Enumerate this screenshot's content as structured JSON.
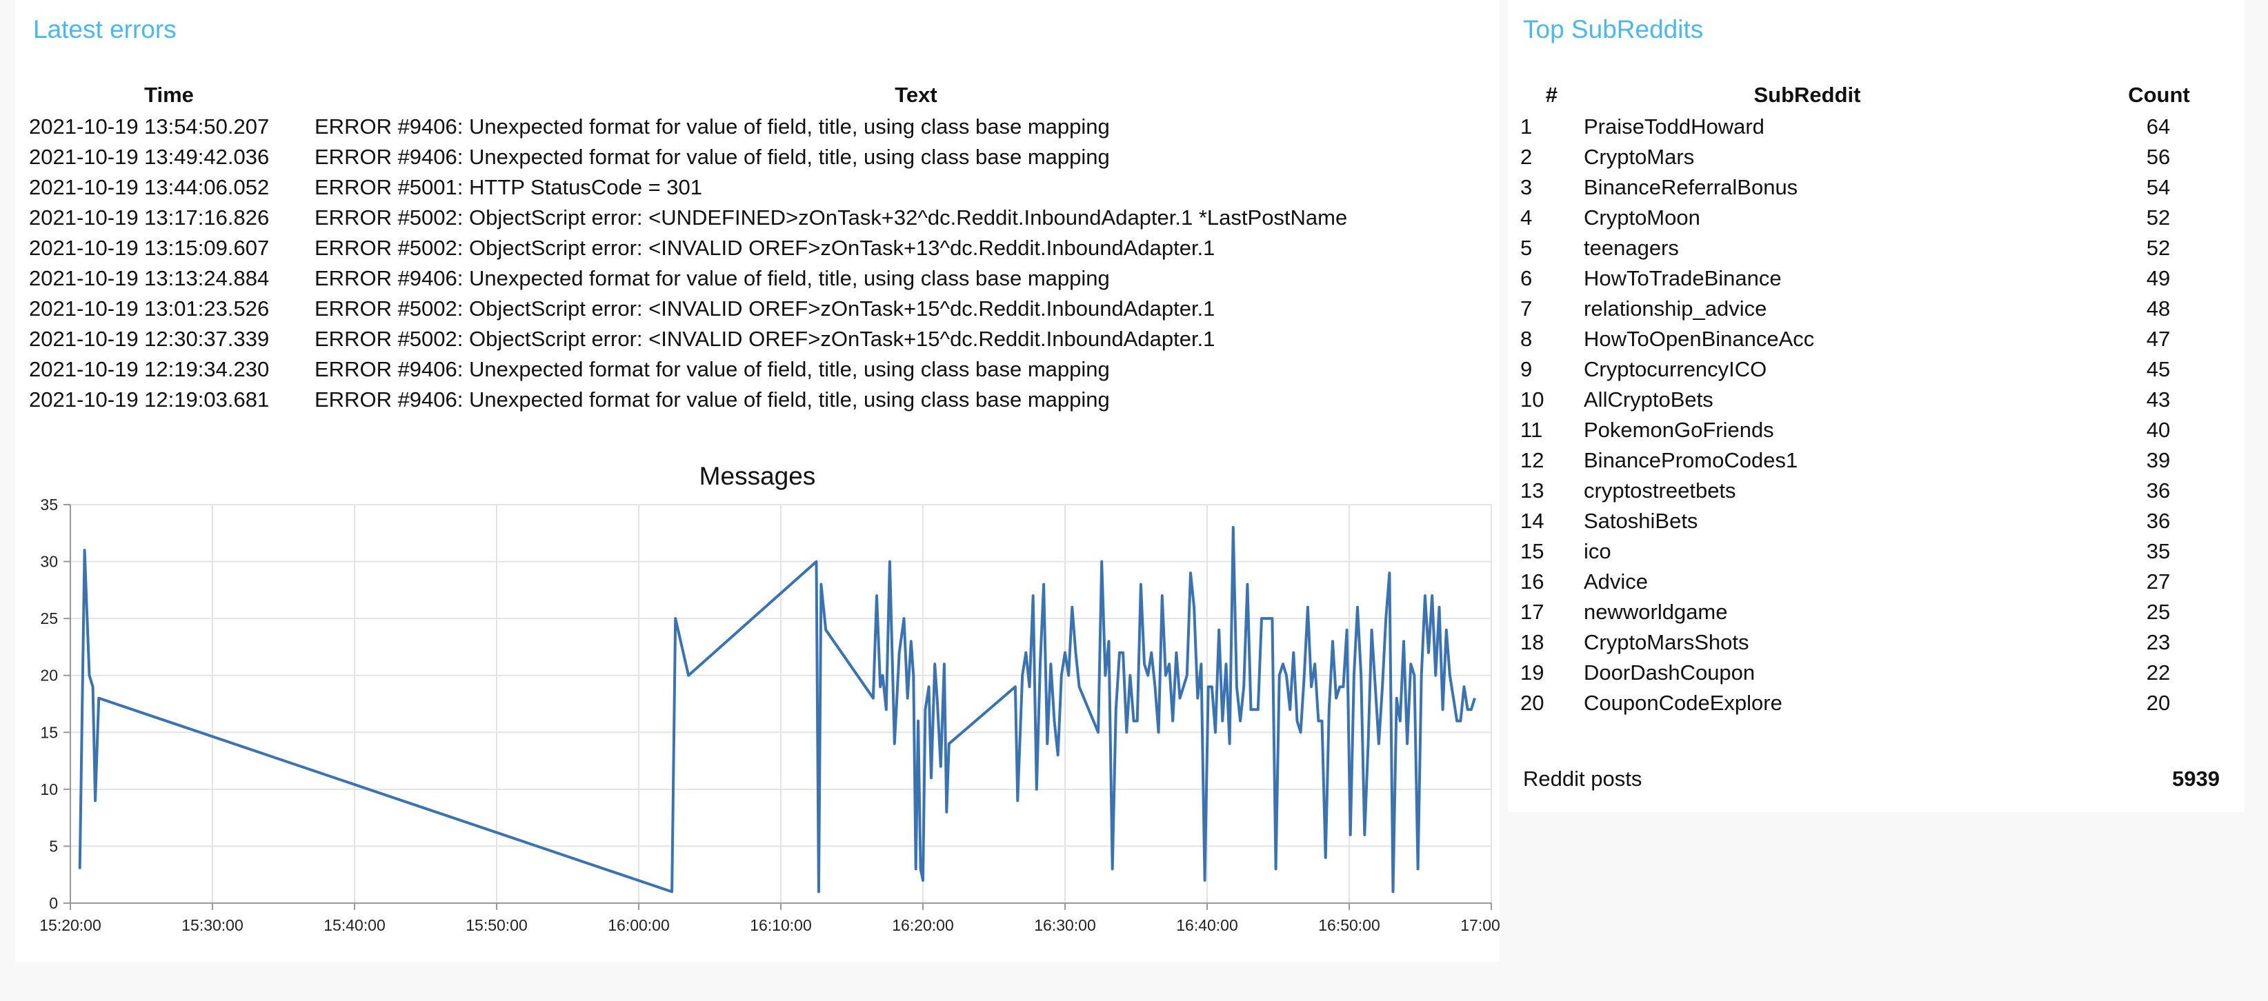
{
  "errors": {
    "title": "Latest errors",
    "columns": [
      "Time",
      "Text"
    ],
    "rows": [
      {
        "time": "2021-10-19 13:54:50.207",
        "text": "ERROR #9406: Unexpected format for value of field, title, using class base mapping"
      },
      {
        "time": "2021-10-19 13:49:42.036",
        "text": "ERROR #9406: Unexpected format for value of field, title, using class base mapping"
      },
      {
        "time": "2021-10-19 13:44:06.052",
        "text": "ERROR #5001: HTTP StatusCode = 301"
      },
      {
        "time": "2021-10-19 13:17:16.826",
        "text": "ERROR #5002: ObjectScript error: <UNDEFINED>zOnTask+32^dc.Reddit.InboundAdapter.1 *LastPostName"
      },
      {
        "time": "2021-10-19 13:15:09.607",
        "text": "ERROR #5002: ObjectScript error: <INVALID OREF>zOnTask+13^dc.Reddit.InboundAdapter.1"
      },
      {
        "time": "2021-10-19 13:13:24.884",
        "text": "ERROR #9406: Unexpected format for value of field, title, using class base mapping"
      },
      {
        "time": "2021-10-19 13:01:23.526",
        "text": "ERROR #5002: ObjectScript error: <INVALID OREF>zOnTask+15^dc.Reddit.InboundAdapter.1"
      },
      {
        "time": "2021-10-19 12:30:37.339",
        "text": "ERROR #5002: ObjectScript error: <INVALID OREF>zOnTask+15^dc.Reddit.InboundAdapter.1"
      },
      {
        "time": "2021-10-19 12:19:34.230",
        "text": "ERROR #9406: Unexpected format for value of field, title, using class base mapping"
      },
      {
        "time": "2021-10-19 12:19:03.681",
        "text": "ERROR #9406: Unexpected format for value of field, title, using class base mapping"
      }
    ]
  },
  "subreddits": {
    "title": "Top SubReddits",
    "columns": [
      "#",
      "SubReddit",
      "Count"
    ],
    "rows": [
      {
        "rank": "1",
        "name": "PraiseToddHoward",
        "count": "64"
      },
      {
        "rank": "2",
        "name": "CryptoMars",
        "count": "56"
      },
      {
        "rank": "3",
        "name": "BinanceReferralBonus",
        "count": "54"
      },
      {
        "rank": "4",
        "name": "CryptoMoon",
        "count": "52"
      },
      {
        "rank": "5",
        "name": "teenagers",
        "count": "52"
      },
      {
        "rank": "6",
        "name": "HowToTradeBinance",
        "count": "49"
      },
      {
        "rank": "7",
        "name": "relationship_advice",
        "count": "48"
      },
      {
        "rank": "8",
        "name": "HowToOpenBinanceAcc",
        "count": "47"
      },
      {
        "rank": "9",
        "name": "CryptocurrencyICO",
        "count": "45"
      },
      {
        "rank": "10",
        "name": "AllCryptoBets",
        "count": "43"
      },
      {
        "rank": "11",
        "name": "PokemonGoFriends",
        "count": "40"
      },
      {
        "rank": "12",
        "name": "BinancePromoCodes1",
        "count": "39"
      },
      {
        "rank": "13",
        "name": "cryptostreetbets",
        "count": "36"
      },
      {
        "rank": "14",
        "name": "SatoshiBets",
        "count": "36"
      },
      {
        "rank": "15",
        "name": "ico",
        "count": "35"
      },
      {
        "rank": "16",
        "name": "Advice",
        "count": "27"
      },
      {
        "rank": "17",
        "name": "newworldgame",
        "count": "25"
      },
      {
        "rank": "18",
        "name": "CryptoMarsShots",
        "count": "23"
      },
      {
        "rank": "19",
        "name": "DoorDashCoupon",
        "count": "22"
      },
      {
        "rank": "20",
        "name": "CouponCodeExplore",
        "count": "20"
      }
    ],
    "posts_label": "Reddit posts",
    "posts_value": "5939"
  },
  "chart_data": {
    "type": "line",
    "title": "Messages",
    "xlabel": "",
    "ylabel": "",
    "x_ticks": [
      "15:20:00",
      "15:30:00",
      "15:40:00",
      "15:50:00",
      "16:00:00",
      "16:10:00",
      "16:20:00",
      "16:30:00",
      "16:40:00",
      "16:50:00",
      "17:00:00"
    ],
    "y_ticks": [
      0,
      5,
      10,
      15,
      20,
      25,
      30,
      35
    ],
    "xlim": [
      "15:20:00",
      "17:00:00"
    ],
    "ylim": [
      0,
      35
    ],
    "grid": true,
    "color": "#3b73b0",
    "series": [
      {
        "points": [
          [
            "15:20:40",
            3
          ],
          [
            "15:21:00",
            31
          ],
          [
            "15:21:20",
            20
          ],
          [
            "15:21:35",
            19
          ],
          [
            "15:21:45",
            9
          ],
          [
            "15:22:00",
            18
          ],
          [
            "16:02:20",
            1
          ],
          [
            "16:02:35",
            25
          ],
          [
            "16:03:30",
            20
          ],
          [
            "16:12:30",
            30
          ],
          [
            "16:12:40",
            1
          ],
          [
            "16:12:50",
            28
          ],
          [
            "16:13:10",
            24
          ],
          [
            "16:16:30",
            18
          ],
          [
            "16:16:45",
            27
          ],
          [
            "16:17:00",
            19
          ],
          [
            "16:17:10",
            20
          ],
          [
            "16:17:25",
            17
          ],
          [
            "16:17:40",
            30
          ],
          [
            "16:18:00",
            14
          ],
          [
            "16:18:20",
            22
          ],
          [
            "16:18:40",
            25
          ],
          [
            "16:18:55",
            18
          ],
          [
            "16:19:10",
            23
          ],
          [
            "16:19:20",
            20
          ],
          [
            "16:19:30",
            3
          ],
          [
            "16:19:40",
            16
          ],
          [
            "16:19:50",
            3
          ],
          [
            "16:20:00",
            2
          ],
          [
            "16:20:10",
            17
          ],
          [
            "16:20:25",
            19
          ],
          [
            "16:20:35",
            11
          ],
          [
            "16:20:50",
            21
          ],
          [
            "16:21:00",
            18
          ],
          [
            "16:21:15",
            12
          ],
          [
            "16:21:30",
            21
          ],
          [
            "16:21:40",
            8
          ],
          [
            "16:21:50",
            14
          ],
          [
            "16:26:30",
            19
          ],
          [
            "16:26:40",
            9
          ],
          [
            "16:27:00",
            20
          ],
          [
            "16:27:15",
            22
          ],
          [
            "16:27:30",
            19
          ],
          [
            "16:27:45",
            27
          ],
          [
            "16:28:00",
            10
          ],
          [
            "16:28:15",
            21
          ],
          [
            "16:28:30",
            28
          ],
          [
            "16:28:45",
            14
          ],
          [
            "16:29:00",
            21
          ],
          [
            "16:29:15",
            16
          ],
          [
            "16:29:30",
            13
          ],
          [
            "16:29:45",
            20
          ],
          [
            "16:30:00",
            22
          ],
          [
            "16:30:15",
            20
          ],
          [
            "16:30:30",
            26
          ],
          [
            "16:30:45",
            22
          ],
          [
            "16:31:00",
            19
          ],
          [
            "16:32:20",
            15
          ],
          [
            "16:32:35",
            30
          ],
          [
            "16:32:50",
            20
          ],
          [
            "16:33:05",
            23
          ],
          [
            "16:33:20",
            3
          ],
          [
            "16:33:35",
            17
          ],
          [
            "16:33:50",
            22
          ],
          [
            "16:34:05",
            22
          ],
          [
            "16:34:20",
            15
          ],
          [
            "16:34:35",
            20
          ],
          [
            "16:34:50",
            16
          ],
          [
            "16:35:05",
            16
          ],
          [
            "16:35:20",
            28
          ],
          [
            "16:35:35",
            21
          ],
          [
            "16:35:50",
            20
          ],
          [
            "16:36:05",
            22
          ],
          [
            "16:36:20",
            19
          ],
          [
            "16:36:35",
            15
          ],
          [
            "16:36:50",
            27
          ],
          [
            "16:37:05",
            20
          ],
          [
            "16:37:20",
            21
          ],
          [
            "16:37:35",
            16
          ],
          [
            "16:37:50",
            22
          ],
          [
            "16:38:05",
            18
          ],
          [
            "16:38:20",
            19
          ],
          [
            "16:38:35",
            20
          ],
          [
            "16:38:50",
            29
          ],
          [
            "16:39:05",
            26
          ],
          [
            "16:39:20",
            18
          ],
          [
            "16:39:35",
            21
          ],
          [
            "16:39:50",
            2
          ],
          [
            "16:40:05",
            19
          ],
          [
            "16:40:20",
            19
          ],
          [
            "16:40:35",
            15
          ],
          [
            "16:40:50",
            24
          ],
          [
            "16:41:05",
            16
          ],
          [
            "16:41:20",
            21
          ],
          [
            "16:41:35",
            14
          ],
          [
            "16:41:50",
            33
          ],
          [
            "16:42:05",
            19
          ],
          [
            "16:42:20",
            16
          ],
          [
            "16:42:35",
            19
          ],
          [
            "16:42:50",
            28
          ],
          [
            "16:43:05",
            17
          ],
          [
            "16:43:20",
            17
          ],
          [
            "16:43:35",
            17
          ],
          [
            "16:43:50",
            25
          ],
          [
            "16:44:05",
            25
          ],
          [
            "16:44:20",
            25
          ],
          [
            "16:44:35",
            25
          ],
          [
            "16:44:50",
            3
          ],
          [
            "16:45:05",
            20
          ],
          [
            "16:45:20",
            21
          ],
          [
            "16:45:35",
            20
          ],
          [
            "16:45:50",
            17
          ],
          [
            "16:46:05",
            22
          ],
          [
            "16:46:20",
            16
          ],
          [
            "16:46:35",
            15
          ],
          [
            "16:46:50",
            20
          ],
          [
            "16:47:05",
            26
          ],
          [
            "16:47:20",
            19
          ],
          [
            "16:47:35",
            21
          ],
          [
            "16:47:50",
            16
          ],
          [
            "16:48:05",
            16
          ],
          [
            "16:48:20",
            4
          ],
          [
            "16:48:35",
            17
          ],
          [
            "16:48:50",
            23
          ],
          [
            "16:49:05",
            18
          ],
          [
            "16:49:20",
            19
          ],
          [
            "16:49:35",
            19
          ],
          [
            "16:49:50",
            24
          ],
          [
            "16:50:05",
            6
          ],
          [
            "16:50:20",
            20
          ],
          [
            "16:50:35",
            26
          ],
          [
            "16:50:50",
            20
          ],
          [
            "16:51:05",
            6
          ],
          [
            "16:51:20",
            14
          ],
          [
            "16:51:35",
            24
          ],
          [
            "16:51:50",
            19
          ],
          [
            "16:52:05",
            14
          ],
          [
            "16:52:20",
            19
          ],
          [
            "16:52:35",
            25
          ],
          [
            "16:52:50",
            29
          ],
          [
            "16:53:05",
            1
          ],
          [
            "16:53:20",
            18
          ],
          [
            "16:53:35",
            16
          ],
          [
            "16:53:50",
            23
          ],
          [
            "16:54:05",
            14
          ],
          [
            "16:54:20",
            21
          ],
          [
            "16:54:35",
            20
          ],
          [
            "16:54:50",
            3
          ],
          [
            "16:55:05",
            20
          ],
          [
            "16:55:20",
            27
          ],
          [
            "16:55:35",
            22
          ],
          [
            "16:55:50",
            27
          ],
          [
            "16:56:05",
            20
          ],
          [
            "16:56:20",
            26
          ],
          [
            "16:56:35",
            17
          ],
          [
            "16:56:50",
            24
          ],
          [
            "16:57:05",
            20
          ],
          [
            "16:57:20",
            18
          ],
          [
            "16:57:35",
            16
          ],
          [
            "16:57:50",
            16
          ],
          [
            "16:58:05",
            19
          ],
          [
            "16:58:20",
            17
          ],
          [
            "16:58:35",
            17
          ],
          [
            "16:58:50",
            18
          ]
        ]
      }
    ]
  }
}
